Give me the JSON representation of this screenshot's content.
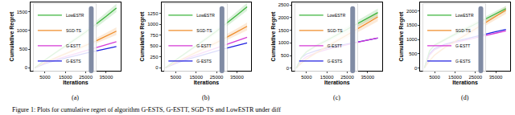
{
  "caption": "Figure 1: Plots for cumulative regret of algorithm G-ESTS, G-ESTT, SGD-TS and LowESTR under diff",
  "chart_data": [
    {
      "type": "line",
      "label": "(a)",
      "x_label": "Iterations",
      "y_label": "Cumulative Regret",
      "x": [
        0,
        2500,
        5000,
        10000,
        15000,
        20000,
        25000,
        30000,
        35000,
        40000
      ],
      "xlim": [
        -2000,
        42000
      ],
      "xticks": [
        5000,
        15000,
        25000,
        35000
      ],
      "ylim": [
        -80,
        1750
      ],
      "yticks": [
        0,
        500,
        1000,
        1500
      ],
      "grid": false,
      "legend": "upper left",
      "series": [
        {
          "name": "G-ESTS",
          "color": "#1f1fe0",
          "values": [
            0,
            60,
            110,
            190,
            260,
            330,
            390,
            450,
            510,
            570
          ]
        },
        {
          "name": "G-ESTT",
          "color": "#d63ad6",
          "values": [
            0,
            70,
            130,
            220,
            300,
            380,
            460,
            540,
            620,
            700
          ]
        },
        {
          "name": "SGD-TS",
          "color": "#f08c28",
          "values": [
            0,
            80,
            150,
            260,
            370,
            480,
            600,
            720,
            850,
            980
          ],
          "lower": [
            0,
            70,
            130,
            230,
            330,
            430,
            540,
            650,
            760,
            880
          ],
          "upper": [
            0,
            90,
            170,
            290,
            410,
            530,
            660,
            790,
            940,
            1080
          ]
        },
        {
          "name": "LowESTR",
          "color": "#3cb43c",
          "values": [
            0,
            110,
            210,
            400,
            580,
            770,
            960,
            1160,
            1380,
            1600
          ],
          "lower": [
            0,
            100,
            190,
            370,
            530,
            710,
            890,
            1070,
            1280,
            1490
          ],
          "upper": [
            0,
            120,
            230,
            430,
            630,
            830,
            1030,
            1250,
            1480,
            1710
          ]
        }
      ]
    },
    {
      "type": "line",
      "label": "(b)",
      "x_label": "Iterations",
      "y_label": "Cumulative Regret",
      "x": [
        0,
        2500,
        5000,
        10000,
        15000,
        20000,
        25000,
        30000,
        35000,
        40000
      ],
      "xlim": [
        -2000,
        42000
      ],
      "xticks": [
        5000,
        15000,
        25000,
        35000
      ],
      "ylim": [
        -70,
        1500
      ],
      "yticks": [
        0,
        250,
        500,
        750,
        1000,
        1250
      ],
      "grid": false,
      "legend": "upper left",
      "series": [
        {
          "name": "G-ESTS",
          "color": "#1f1fe0",
          "values": [
            0,
            50,
            100,
            180,
            250,
            320,
            390,
            450,
            510,
            570
          ]
        },
        {
          "name": "G-ESTT",
          "color": "#d63ad6",
          "values": [
            0,
            60,
            115,
            210,
            290,
            380,
            460,
            540,
            620,
            700
          ]
        },
        {
          "name": "SGD-TS",
          "color": "#f08c28",
          "values": [
            0,
            70,
            130,
            240,
            350,
            460,
            580,
            700,
            820,
            950
          ],
          "lower": [
            0,
            60,
            115,
            215,
            310,
            410,
            520,
            630,
            740,
            860
          ],
          "upper": [
            0,
            80,
            145,
            265,
            390,
            510,
            640,
            770,
            900,
            1040
          ]
        },
        {
          "name": "LowESTR",
          "color": "#3cb43c",
          "values": [
            0,
            90,
            180,
            340,
            500,
            670,
            840,
            1020,
            1210,
            1400
          ],
          "lower": [
            0,
            80,
            165,
            310,
            460,
            620,
            780,
            950,
            1130,
            1310
          ],
          "upper": [
            0,
            100,
            195,
            370,
            540,
            720,
            900,
            1090,
            1290,
            1490
          ]
        }
      ]
    },
    {
      "type": "line",
      "label": "(c)",
      "x_label": "Iterations",
      "y_label": "Cumulative Regret",
      "x": [
        0,
        2500,
        5000,
        10000,
        15000,
        20000,
        25000,
        30000,
        35000,
        40000
      ],
      "xlim": [
        -2000,
        42000
      ],
      "xticks": [
        5000,
        15000,
        25000,
        35000
      ],
      "ylim": [
        -100,
        2600
      ],
      "yticks": [
        0,
        500,
        1000,
        1500,
        2000,
        2500
      ],
      "grid": false,
      "legend": "upper left",
      "series": [
        {
          "name": "G-ESTS",
          "color": "#1f1fe0",
          "values": [
            0,
            420,
            560,
            700,
            800,
            880,
            960,
            1040,
            1110,
            1190
          ]
        },
        {
          "name": "G-ESTT",
          "color": "#d63ad6",
          "values": [
            0,
            300,
            450,
            620,
            740,
            840,
            930,
            1020,
            1110,
            1200
          ]
        },
        {
          "name": "SGD-TS",
          "color": "#f08c28",
          "values": [
            0,
            200,
            360,
            620,
            850,
            1080,
            1320,
            1550,
            1790,
            2030
          ],
          "lower": [
            0,
            180,
            320,
            560,
            770,
            980,
            1200,
            1410,
            1630,
            1850
          ],
          "upper": [
            0,
            220,
            400,
            680,
            930,
            1180,
            1440,
            1690,
            1950,
            2210
          ]
        },
        {
          "name": "LowESTR",
          "color": "#3cb43c",
          "values": [
            0,
            420,
            650,
            900,
            1100,
            1320,
            1540,
            1760,
            1980,
            2200
          ],
          "lower": [
            0,
            380,
            600,
            830,
            1020,
            1230,
            1430,
            1640,
            1850,
            2050
          ],
          "upper": [
            0,
            460,
            700,
            970,
            1180,
            1410,
            1650,
            1880,
            2110,
            2350
          ]
        }
      ]
    },
    {
      "type": "line",
      "label": "(d)",
      "x_label": "Iterations",
      "y_label": "Cumulative Regret",
      "x": [
        0,
        2500,
        5000,
        10000,
        15000,
        20000,
        25000,
        30000,
        35000,
        40000
      ],
      "xlim": [
        -2000,
        42000
      ],
      "xticks": [
        5000,
        15000,
        25000,
        35000
      ],
      "ylim": [
        -100,
        2300
      ],
      "yticks": [
        0,
        500,
        1000,
        1500,
        2000
      ],
      "grid": false,
      "legend": "upper left",
      "series": [
        {
          "name": "G-ESTS",
          "color": "#1f1fe0",
          "values": [
            0,
            500,
            680,
            830,
            930,
            1020,
            1110,
            1190,
            1270,
            1350
          ]
        },
        {
          "name": "G-ESTT",
          "color": "#d63ad6",
          "values": [
            0,
            450,
            640,
            790,
            890,
            980,
            1060,
            1140,
            1220,
            1300
          ]
        },
        {
          "name": "SGD-TS",
          "color": "#f08c28",
          "values": [
            0,
            250,
            450,
            720,
            930,
            1150,
            1370,
            1590,
            1810,
            2030
          ],
          "lower": [
            0,
            220,
            410,
            660,
            860,
            1070,
            1280,
            1490,
            1700,
            1900
          ],
          "upper": [
            0,
            280,
            490,
            780,
            1000,
            1230,
            1460,
            1690,
            1920,
            2160
          ]
        },
        {
          "name": "LowESTR",
          "color": "#3cb43c",
          "values": [
            0,
            600,
            800,
            1000,
            1180,
            1360,
            1540,
            1720,
            1900,
            2080
          ],
          "lower": [
            0,
            560,
            750,
            940,
            1110,
            1280,
            1460,
            1630,
            1800,
            1980
          ],
          "upper": [
            0,
            640,
            850,
            1060,
            1250,
            1440,
            1620,
            1810,
            2000,
            2180
          ]
        }
      ]
    }
  ]
}
